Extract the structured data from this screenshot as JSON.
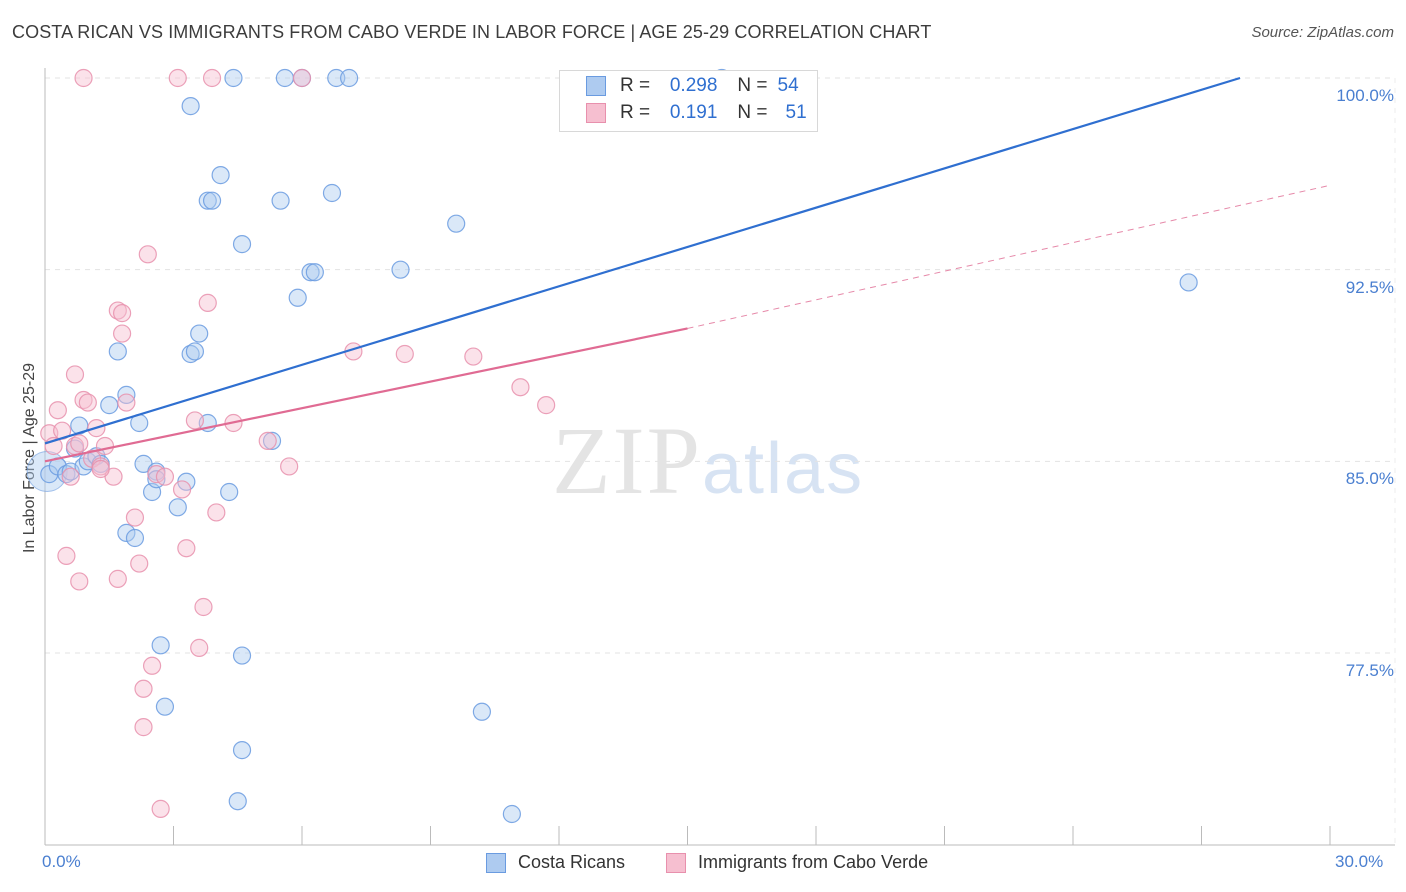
{
  "title": "COSTA RICAN VS IMMIGRANTS FROM CABO VERDE IN LABOR FORCE | AGE 25-29 CORRELATION CHART",
  "source": "Source: ZipAtlas.com",
  "watermark": {
    "zip": "ZIP",
    "atlas": "atlas"
  },
  "colors": {
    "blue": "#2f6fd0",
    "blue_fill": "#aecbf0",
    "pink": "#e06b93",
    "pink_fill": "#f6bfd0"
  },
  "legend": {
    "rows": [
      {
        "r_label": "R =",
        "r_value": "0.298",
        "n_label": "N =",
        "n_value": "54"
      },
      {
        "r_label": "R =",
        "r_value": "0.191",
        "n_label": "N =",
        "n_value": "51"
      }
    ]
  },
  "chart_data": {
    "type": "scatter",
    "title": "COSTA RICAN VS IMMIGRANTS FROM CABO VERDE IN LABOR FORCE | AGE 25-29 CORRELATION CHART",
    "xlabel": "",
    "ylabel": "In Labor Force | Age 25-29",
    "xlim": [
      0,
      30
    ],
    "ylim": [
      70.5,
      101.2
    ],
    "x_tick_labels": [
      "0.0%",
      "30.0%"
    ],
    "y_ticks": [
      77.5,
      85.0,
      92.5,
      100.0
    ],
    "y_tick_labels": [
      "77.5%",
      "85.0%",
      "92.5%",
      "100.0%"
    ],
    "grid": true,
    "series": [
      {
        "name": "Costa Ricans",
        "r": 0.298,
        "n": 54,
        "trend": {
          "x0": 0.0,
          "y0": 85.7,
          "x1": 27.9,
          "y1": 100.0,
          "dashed_to": null
        },
        "points": [
          [
            0.1,
            84.5
          ],
          [
            0.3,
            84.8
          ],
          [
            0.5,
            84.5
          ],
          [
            0.6,
            84.6
          ],
          [
            0.7,
            85.5
          ],
          [
            0.8,
            86.4
          ],
          [
            0.9,
            84.8
          ],
          [
            1.0,
            85.0
          ],
          [
            1.2,
            85.2
          ],
          [
            1.3,
            84.9
          ],
          [
            1.5,
            87.2
          ],
          [
            1.7,
            89.3
          ],
          [
            1.9,
            82.2
          ],
          [
            1.9,
            87.6
          ],
          [
            2.1,
            82.0
          ],
          [
            2.2,
            86.5
          ],
          [
            2.3,
            84.9
          ],
          [
            2.5,
            83.8
          ],
          [
            2.6,
            84.6
          ],
          [
            2.6,
            84.3
          ],
          [
            2.7,
            77.8
          ],
          [
            2.8,
            75.4
          ],
          [
            3.1,
            83.2
          ],
          [
            3.3,
            84.2
          ],
          [
            3.4,
            89.2
          ],
          [
            3.4,
            98.9
          ],
          [
            3.5,
            89.3
          ],
          [
            3.6,
            90.0
          ],
          [
            3.8,
            86.5
          ],
          [
            3.8,
            95.2
          ],
          [
            3.9,
            95.2
          ],
          [
            4.1,
            96.2
          ],
          [
            4.3,
            83.8
          ],
          [
            4.4,
            100.0
          ],
          [
            4.5,
            71.7
          ],
          [
            4.6,
            73.7
          ],
          [
            4.6,
            93.5
          ],
          [
            4.6,
            77.4
          ],
          [
            5.3,
            85.8
          ],
          [
            5.5,
            95.2
          ],
          [
            5.6,
            100.0
          ],
          [
            5.9,
            91.4
          ],
          [
            6.0,
            100.0
          ],
          [
            6.2,
            92.4
          ],
          [
            6.3,
            92.4
          ],
          [
            6.7,
            95.5
          ],
          [
            6.8,
            100.0
          ],
          [
            7.1,
            100.0
          ],
          [
            8.3,
            92.5
          ],
          [
            9.6,
            94.3
          ],
          [
            10.2,
            75.2
          ],
          [
            10.9,
            71.2
          ],
          [
            15.8,
            100.0
          ],
          [
            26.7,
            92.0
          ]
        ]
      },
      {
        "name": "Immigrants from Cabo Verde",
        "r": 0.191,
        "n": 51,
        "trend": {
          "x0": 0.0,
          "y0": 85.0,
          "x1": 15.0,
          "y1": 90.2,
          "dashed_to": {
            "x": 30.0,
            "y": 95.8
          }
        },
        "points": [
          [
            0.1,
            86.1
          ],
          [
            0.2,
            85.6
          ],
          [
            0.3,
            87.0
          ],
          [
            0.4,
            86.2
          ],
          [
            0.5,
            81.3
          ],
          [
            0.6,
            84.4
          ],
          [
            0.7,
            88.4
          ],
          [
            0.7,
            85.6
          ],
          [
            0.8,
            85.7
          ],
          [
            0.8,
            80.3
          ],
          [
            0.9,
            87.4
          ],
          [
            1.0,
            87.3
          ],
          [
            1.1,
            85.1
          ],
          [
            1.2,
            86.3
          ],
          [
            1.3,
            84.8
          ],
          [
            1.4,
            85.6
          ],
          [
            1.6,
            84.4
          ],
          [
            1.7,
            80.4
          ],
          [
            1.7,
            90.9
          ],
          [
            1.8,
            90.8
          ],
          [
            1.8,
            90.0
          ],
          [
            1.9,
            87.3
          ],
          [
            2.1,
            82.8
          ],
          [
            2.2,
            81.0
          ],
          [
            2.3,
            74.6
          ],
          [
            2.3,
            76.1
          ],
          [
            2.4,
            93.1
          ],
          [
            2.5,
            77.0
          ],
          [
            2.6,
            84.5
          ],
          [
            2.7,
            71.4
          ],
          [
            2.8,
            84.4
          ],
          [
            3.1,
            100.0
          ],
          [
            3.2,
            83.9
          ],
          [
            3.3,
            81.6
          ],
          [
            3.5,
            86.6
          ],
          [
            3.6,
            77.7
          ],
          [
            3.7,
            79.3
          ],
          [
            3.8,
            91.2
          ],
          [
            3.9,
            100.0
          ],
          [
            4.0,
            83.0
          ],
          [
            4.4,
            86.5
          ],
          [
            5.2,
            85.8
          ],
          [
            5.7,
            84.8
          ],
          [
            6.0,
            100.0
          ],
          [
            7.2,
            89.3
          ],
          [
            8.4,
            89.2
          ],
          [
            10.0,
            89.1
          ],
          [
            11.1,
            87.9
          ],
          [
            11.7,
            87.2
          ],
          [
            0.9,
            100.0
          ],
          [
            1.3,
            84.7
          ]
        ]
      }
    ]
  },
  "bottom_legend": [
    {
      "label": "Costa Ricans"
    },
    {
      "label": "Immigrants from Cabo Verde"
    }
  ]
}
